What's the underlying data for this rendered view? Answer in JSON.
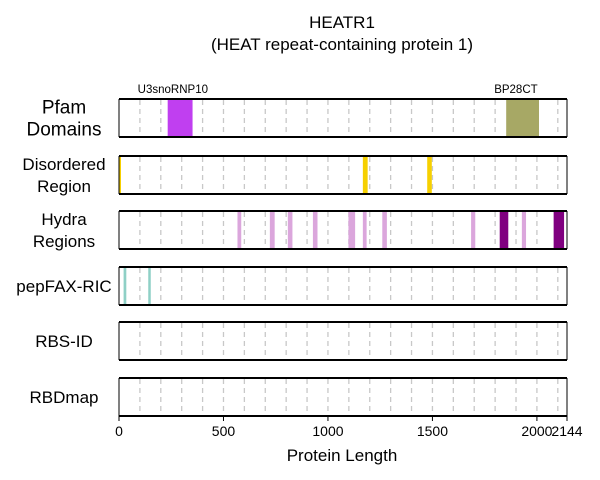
{
  "chart_data": {
    "type": "track",
    "title": "HEATR1",
    "subtitle": "(HEAT repeat-containing protein 1)",
    "xlabel": "Protein Length",
    "xlim": [
      0,
      2144
    ],
    "xticks": [
      0,
      500,
      1000,
      1500,
      2000,
      2144
    ],
    "grid_step": 100,
    "colors": {
      "pfam_u3": "#c03ff0",
      "pfam_bp": "#a7a865",
      "disordered": "#f6d000",
      "hydra_light": "#dba6dc",
      "hydra_dark": "#800080",
      "pepfax": "#8fd0c6",
      "grid": "#c8c8c8"
    },
    "tracks": [
      {
        "label": "Pfam\nDomains",
        "segments": [
          {
            "start": 233,
            "end": 352,
            "label": "U3snoRNP10",
            "color": "pfam_u3"
          },
          {
            "start": 1853,
            "end": 2010,
            "label": "BP28CT",
            "color": "pfam_bp"
          }
        ]
      },
      {
        "label": "Disordered\nRegion",
        "segments": [
          {
            "start": 0,
            "end": 8,
            "color": "disordered"
          },
          {
            "start": 1167,
            "end": 1190,
            "color": "disordered"
          },
          {
            "start": 1475,
            "end": 1497,
            "color": "disordered"
          }
        ]
      },
      {
        "label": "Hydra\nRegions",
        "segments": [
          {
            "start": 567,
            "end": 585,
            "color": "hydra_light"
          },
          {
            "start": 722,
            "end": 745,
            "color": "hydra_light"
          },
          {
            "start": 808,
            "end": 830,
            "color": "hydra_light"
          },
          {
            "start": 928,
            "end": 950,
            "color": "hydra_light"
          },
          {
            "start": 1098,
            "end": 1130,
            "color": "hydra_light"
          },
          {
            "start": 1167,
            "end": 1185,
            "color": "hydra_light"
          },
          {
            "start": 1260,
            "end": 1282,
            "color": "hydra_light"
          },
          {
            "start": 1685,
            "end": 1705,
            "color": "hydra_light"
          },
          {
            "start": 1822,
            "end": 1863,
            "color": "hydra_dark"
          },
          {
            "start": 1928,
            "end": 1948,
            "color": "hydra_light"
          },
          {
            "start": 2080,
            "end": 2130,
            "color": "hydra_dark"
          }
        ]
      },
      {
        "label": "pepFAX-RIC",
        "segments": [
          {
            "start": 22,
            "end": 35,
            "color": "pepfax"
          },
          {
            "start": 140,
            "end": 152,
            "color": "pepfax"
          }
        ]
      },
      {
        "label": "RBS-ID",
        "segments": []
      },
      {
        "label": "RBDmap",
        "segments": []
      }
    ]
  }
}
